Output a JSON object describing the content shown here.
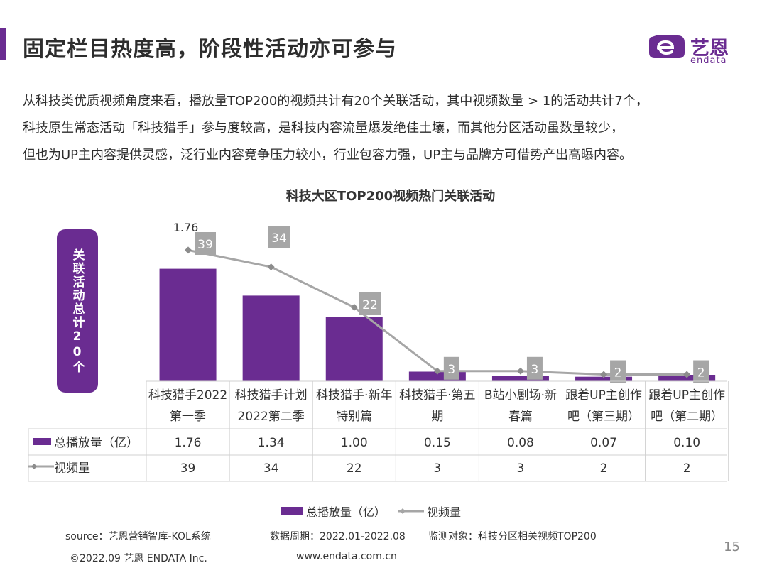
{
  "header": {
    "title": "固定栏目热度高，阶段性活动亦可参与",
    "logo_cn": "艺恩",
    "logo_en": "endata"
  },
  "intro": {
    "line1": "从科技类优质视频角度来看，播放量TOP200的视频共计有20个关联活动，其中视频数量 > 1的活动共计7个，",
    "line2": "科技原生常态活动「科技猎手」参与度较高，是科技内容流量爆发绝佳土壤，而其他分区活动虽数量较少，",
    "line3": "但也为UP主内容提供灵感，泛行业内容竞争压力较小，行业包容力强，UP主与品牌方可借势产出高曝内容。"
  },
  "side_label": "关联活动总计20个",
  "chart_data": {
    "type": "bar",
    "title": "科技大区TOP200视频热门关联活动",
    "categories": [
      [
        "科技猎手2022",
        "第一季"
      ],
      [
        "科技猎手计划",
        "2022第二季"
      ],
      [
        "科技猎手·新年",
        "特别篇"
      ],
      [
        "科技猎手·第五",
        "期"
      ],
      [
        "B站小剧场·新",
        "春篇"
      ],
      [
        "跟着UP主创作",
        "吧（第三期）"
      ],
      [
        "跟着UP主创作",
        "吧（第二期）"
      ]
    ],
    "series": [
      {
        "name": "总播放量（亿）",
        "kind": "bar",
        "color": "#6a2c91",
        "values": [
          1.76,
          1.34,
          1.0,
          0.15,
          0.08,
          0.07,
          0.1
        ],
        "display": [
          "1.76",
          "1.34",
          "1.00",
          "0.15",
          "0.08",
          "0.07",
          "0.10"
        ]
      },
      {
        "name": "视频量",
        "kind": "line",
        "color": "#a6a6a6",
        "values": [
          39,
          34,
          22,
          3,
          3,
          2,
          2
        ],
        "display": [
          "39",
          "34",
          "22",
          "3",
          "3",
          "2",
          "2"
        ]
      }
    ],
    "bar_label": "1.76",
    "ylim_bar": [
      0,
      2.0
    ],
    "ylim_line": [
      0,
      45
    ],
    "legend_position": "bottom"
  },
  "legend": {
    "bar": "总播放量（亿）",
    "line": "视频量"
  },
  "footer": {
    "source": "source：艺恩营销智库-KOL系统",
    "period": "数据周期：2022.01-2022.08",
    "target": "监测对象：科技分区相关视频TOP200",
    "copyright": "©2022.09 艺恩 ENDATA Inc.",
    "website": "www.endata.com.cn",
    "page": "15"
  },
  "colors": {
    "accent": "#6a2c91",
    "line": "#a6a6a6"
  }
}
